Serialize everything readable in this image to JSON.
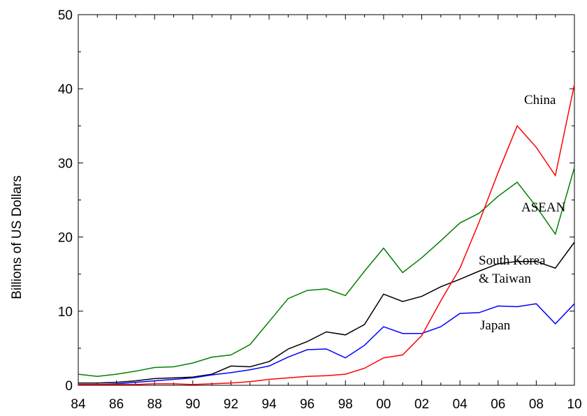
{
  "chart_data": {
    "type": "line",
    "title": "",
    "xlabel": "",
    "ylabel": "Billions of US Dollars",
    "ylim": [
      0,
      50
    ],
    "xlim": [
      1984,
      2010
    ],
    "yticks": [
      "0",
      "10",
      "20",
      "30",
      "40",
      "50"
    ],
    "xticks": [
      "84",
      "86",
      "88",
      "90",
      "92",
      "94",
      "96",
      "98",
      "00",
      "02",
      "04",
      "06",
      "08",
      "10"
    ],
    "grid": false,
    "x": [
      1984,
      1985,
      1986,
      1987,
      1988,
      1989,
      1990,
      1991,
      1992,
      1993,
      1994,
      1995,
      1996,
      1997,
      1998,
      1999,
      2000,
      2001,
      2002,
      2003,
      2004,
      2005,
      2006,
      2007,
      2008,
      2009,
      2010
    ],
    "series": [
      {
        "name": "China",
        "color": "#ff0000",
        "label_lines": [
          "China"
        ],
        "values": [
          0.1,
          0.1,
          0.1,
          0.1,
          0.2,
          0.2,
          0.1,
          0.2,
          0.3,
          0.5,
          0.8,
          1.0,
          1.2,
          1.3,
          1.5,
          2.3,
          3.7,
          4.1,
          6.7,
          11.4,
          15.8,
          22.0,
          28.7,
          35.0,
          32.1,
          28.3,
          40.6
        ]
      },
      {
        "name": "ASEAN",
        "color": "#008000",
        "label_lines": [
          "ASEAN"
        ],
        "values": [
          1.5,
          1.2,
          1.5,
          1.9,
          2.4,
          2.5,
          3.0,
          3.8,
          4.1,
          5.5,
          8.6,
          11.7,
          12.8,
          13.0,
          12.1,
          15.4,
          18.5,
          15.2,
          17.2,
          19.5,
          21.9,
          23.2,
          25.5,
          27.4,
          24.1,
          20.4,
          29.4
        ]
      },
      {
        "name": "South Korea & Taiwan",
        "color": "#000000",
        "label_lines": [
          "South Korea",
          "& Taiwan"
        ],
        "values": [
          0.3,
          0.3,
          0.4,
          0.6,
          0.9,
          1.0,
          1.1,
          1.5,
          2.6,
          2.5,
          3.2,
          4.9,
          5.9,
          7.2,
          6.8,
          8.2,
          12.3,
          11.3,
          12.0,
          13.3,
          14.3,
          15.4,
          16.4,
          16.7,
          16.7,
          15.8,
          19.3
        ]
      },
      {
        "name": "Japan",
        "color": "#0000ff",
        "label_lines": [
          "Japan"
        ],
        "values": [
          0.1,
          0.1,
          0.2,
          0.4,
          0.6,
          0.8,
          1.0,
          1.4,
          1.7,
          2.1,
          2.6,
          3.8,
          4.8,
          4.9,
          3.7,
          5.4,
          7.9,
          7.0,
          7.0,
          7.9,
          9.7,
          9.8,
          10.7,
          10.6,
          11.0,
          8.3,
          11.0
        ]
      }
    ]
  }
}
